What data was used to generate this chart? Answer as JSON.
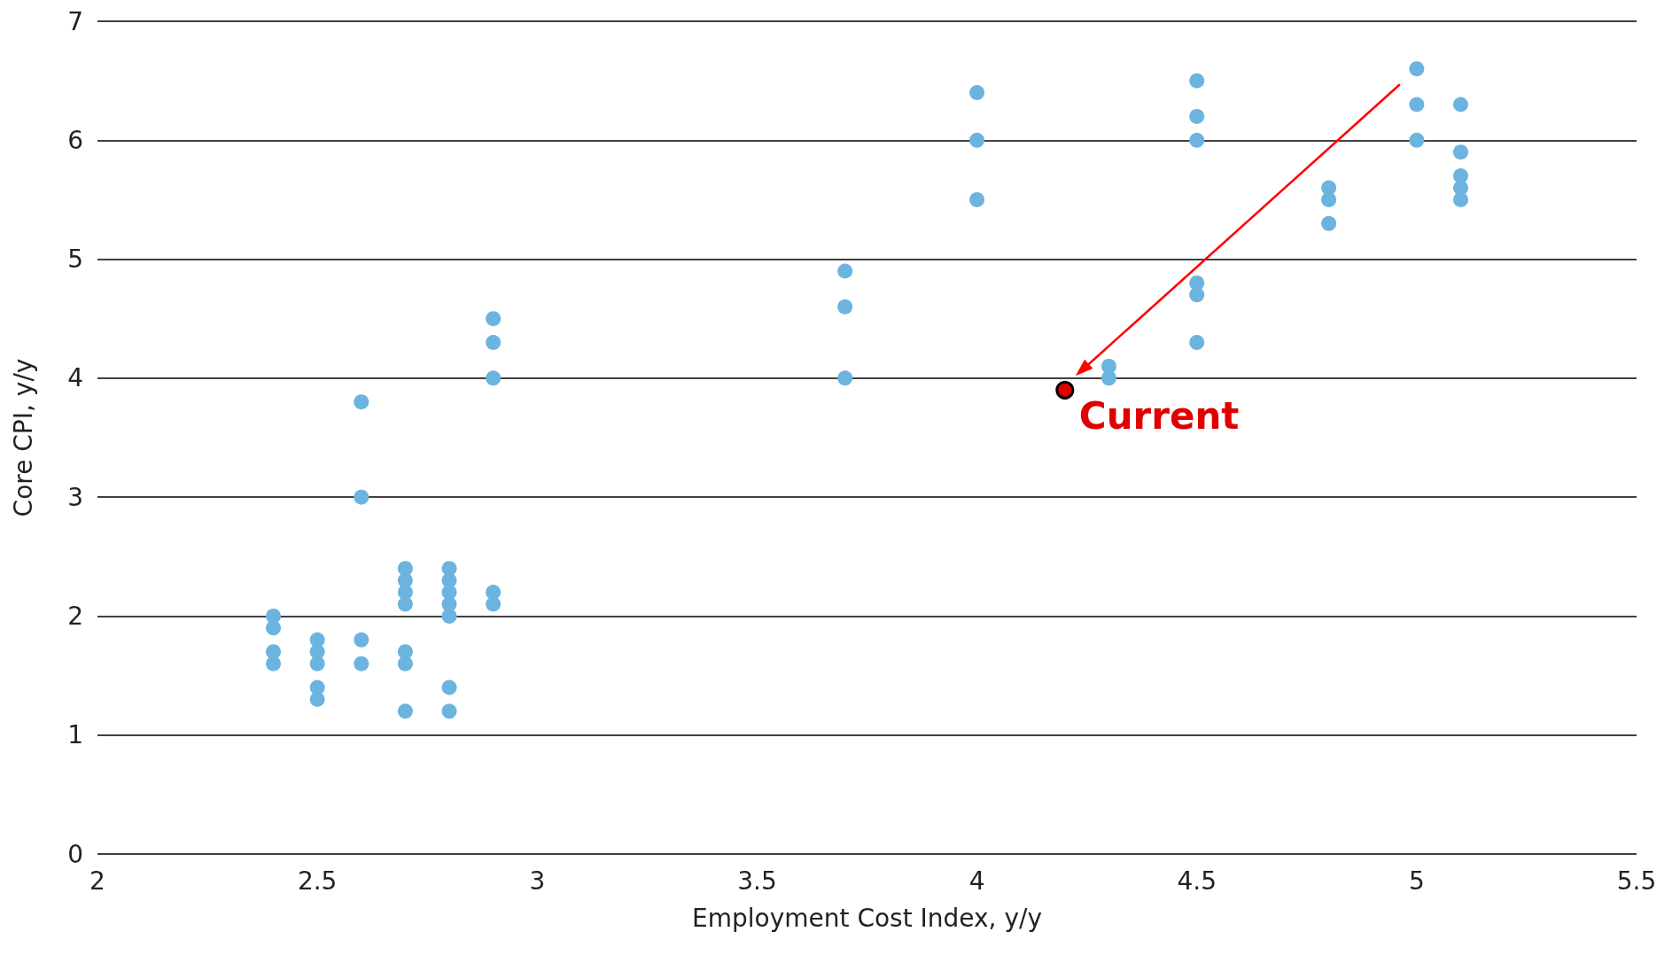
{
  "chart_data": {
    "type": "scatter",
    "xlabel": "Employment Cost Index, y/y",
    "ylabel": "Core CPI, y/y",
    "xlim": [
      2,
      5.5
    ],
    "xticks": [
      2,
      2.5,
      3,
      3.5,
      4,
      4.5,
      5,
      5.5
    ],
    "ylim": [
      0,
      7
    ],
    "yticks": [
      0,
      1,
      2,
      3,
      4,
      5,
      6,
      7
    ],
    "grid": "y",
    "marker": "circle",
    "series": [
      {
        "color": "#6cb4e0",
        "x": [
          2.4,
          2.4,
          2.4,
          2.4,
          2.5,
          2.5,
          2.5,
          2.5,
          2.5,
          2.6,
          2.6,
          2.6,
          2.6,
          2.7,
          2.7,
          2.7,
          2.7,
          2.7,
          2.7,
          2.7,
          2.8,
          2.8,
          2.8,
          2.8,
          2.8,
          2.8,
          2.8,
          2.9,
          2.9,
          2.9,
          2.9,
          2.9,
          3.7,
          3.7,
          3.7,
          4.0,
          4.0,
          4.0,
          4.3,
          4.3,
          4.5,
          4.5,
          4.5,
          4.5,
          4.5,
          4.5,
          4.8,
          4.8,
          4.8,
          5.0,
          5.0,
          5.0,
          5.1,
          5.1,
          5.1,
          5.1,
          5.1
        ],
        "values": [
          2.0,
          1.9,
          1.7,
          1.6,
          1.8,
          1.7,
          1.6,
          1.4,
          1.3,
          3.8,
          3.0,
          1.8,
          1.6,
          2.4,
          2.3,
          2.2,
          2.1,
          1.7,
          1.6,
          1.2,
          2.4,
          2.3,
          2.2,
          2.1,
          2.0,
          1.4,
          1.2,
          4.5,
          4.3,
          4.0,
          2.2,
          2.1,
          4.9,
          4.6,
          4.0,
          6.4,
          6.0,
          5.5,
          4.1,
          4.0,
          6.5,
          6.2,
          6.0,
          4.8,
          4.7,
          4.3,
          5.6,
          5.5,
          5.3,
          6.6,
          6.3,
          6.0,
          6.3,
          5.9,
          5.7,
          5.6,
          5.5
        ]
      },
      {
        "color": "#e00000",
        "x": [
          4.2
        ],
        "values": [
          3.9
        ]
      }
    ],
    "annotations": [
      {
        "text": "Current",
        "x": 4.2,
        "y": 3.9
      }
    ]
  }
}
